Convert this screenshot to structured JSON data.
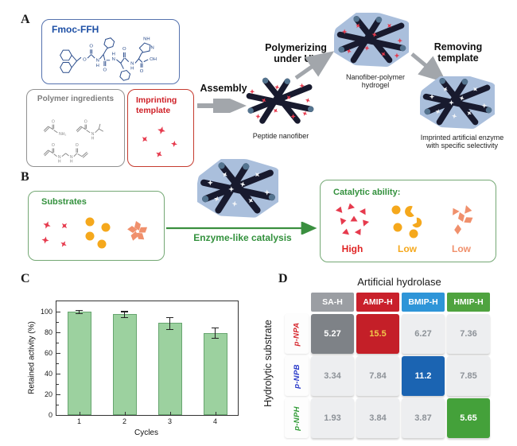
{
  "colors": {
    "fmoc_border": "#5572ae",
    "fmoc_text": "#1d4fa5",
    "structure_blue": "#2b4d8c",
    "gray_border": "#919191",
    "gray_text": "#7d7d7d",
    "structure_gray": "#8a8a8a",
    "red_border": "#c53b2f",
    "red_text": "#cf2027",
    "star_red": "#e63a4d",
    "arrow_gray": "#a2a6ab",
    "rod_dark": "#181a2e",
    "rod_cap": "#54748f",
    "blob_blue": "#aabfdc",
    "green_border": "#74a874",
    "green_text": "#33913d",
    "arrow_green": "#3a8f3f",
    "substrate_yellow": "#f5a81c",
    "substrate_salmon": "#f0906c",
    "bar_fill": "#9cd19f",
    "bar_edge": "#67a56f",
    "white_star": "#f2f4f7"
  },
  "panel_a": {
    "label": "A",
    "fmoc_title": "Fmoc-FFH",
    "fmoc_atoms": [
      "O",
      "O",
      "N",
      "H",
      "O",
      "H",
      "N",
      "O",
      "N",
      "H",
      "OH",
      "N",
      "NH",
      "O"
    ],
    "polymer_title": "Polymer ingredients",
    "polymer_atoms": [
      "O",
      "NH₂",
      "O",
      "N",
      "H",
      "O",
      "N",
      "H",
      "N",
      "H",
      "O"
    ],
    "template_title": "Imprinting template",
    "assembly_label": "Assembly",
    "nanofiber_caption": "Peptide nanofiber",
    "polymerizing_label": "Polymerizing under UV",
    "hydrogel_caption": "Nanofiber-polymer hydrogel",
    "removing_label": "Removing template",
    "imprinted_caption": "Imprinted artificial enzyme with specific selectivity"
  },
  "panel_b": {
    "label": "B",
    "substrates_title": "Substrates",
    "catalysis_label": "Enzyme-like catalysis",
    "catalytic_title": "Catalytic ability:",
    "results": [
      {
        "text": "High",
        "color": "#e02424"
      },
      {
        "text": "Low",
        "color": "#f5a81c"
      },
      {
        "text": "Low",
        "color": "#f0906c"
      }
    ]
  },
  "panel_c": {
    "label": "C"
  },
  "panel_d": {
    "label": "D"
  },
  "chart_data": [
    {
      "type": "bar",
      "title": "",
      "categories": [
        "1",
        "2",
        "3",
        "4"
      ],
      "values": [
        100,
        97.5,
        89,
        79.5
      ],
      "errors": [
        1.5,
        3,
        6,
        5
      ],
      "xlabel": "Cycles",
      "ylabel": "Retained activity (%)",
      "ylim": [
        0,
        110
      ],
      "yticks": [
        0,
        20,
        40,
        60,
        80,
        100
      ],
      "grid": false,
      "bar_color": "#9cd19f",
      "bar_edge_color": "#67a56f"
    },
    {
      "type": "heatmap",
      "title": "Artificial hydrolase",
      "row_axis_label": "Hydrolytic substrate",
      "columns": [
        "SA-H",
        "AMIP-H",
        "BMIP-H",
        "HMIP-H"
      ],
      "column_colors": [
        "#9b9ea3",
        "#c9202b",
        "#2e95d8",
        "#4fa33f"
      ],
      "rows": [
        "p-NPA",
        "p-NPB",
        "p-NPH"
      ],
      "row_colors": [
        "#d6252b",
        "#2637c8",
        "#2f9a35"
      ],
      "values": [
        [
          5.27,
          15.5,
          6.27,
          7.36
        ],
        [
          3.34,
          7.84,
          11.2,
          7.85
        ],
        [
          1.93,
          3.84,
          3.87,
          5.65
        ]
      ],
      "cell_bg_default": "#edeef0",
      "cell_text_default": "#8d9298",
      "highlights": [
        {
          "row": 0,
          "col": 0,
          "bg": "#7e8287",
          "text": "#ffffff"
        },
        {
          "row": 0,
          "col": 1,
          "bg": "#c41f28",
          "text": "#f2c84b"
        },
        {
          "row": 1,
          "col": 2,
          "bg": "#1b64b2",
          "text": "#ffffff"
        },
        {
          "row": 2,
          "col": 3,
          "bg": "#44a13a",
          "text": "#ffffff"
        }
      ]
    }
  ]
}
